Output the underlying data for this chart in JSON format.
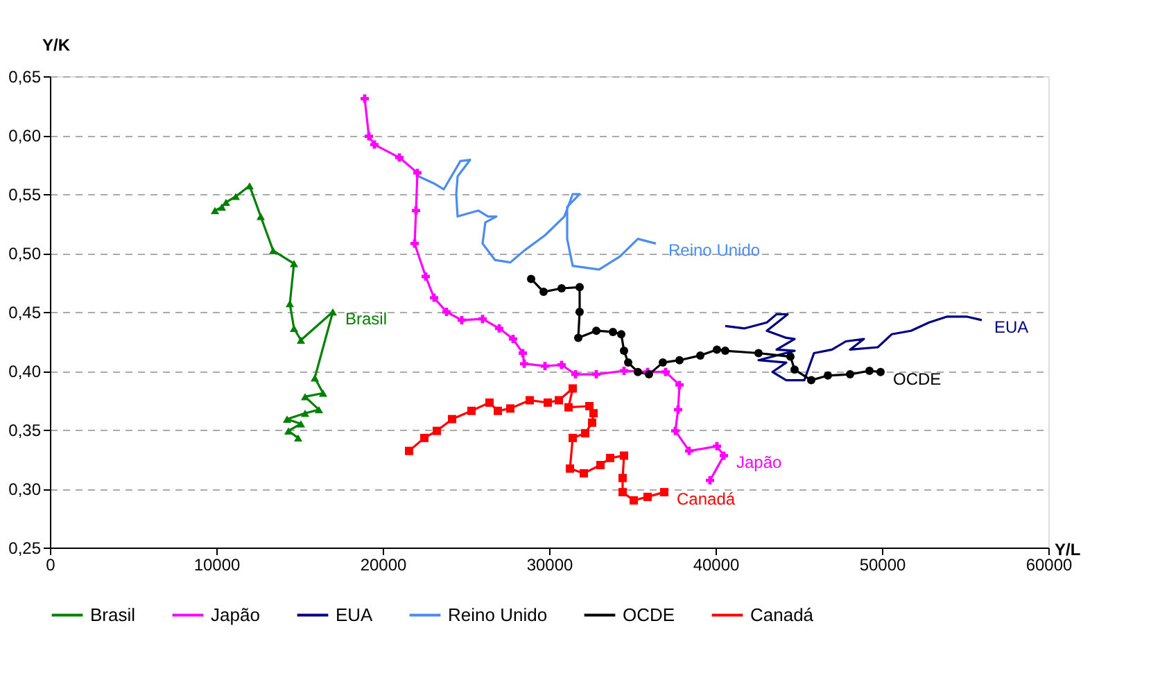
{
  "chart_data": {
    "type": "line",
    "xlabel": "Y/L",
    "ylabel": "Y/K",
    "xlim": [
      0,
      60000
    ],
    "xticks": [
      0,
      10000,
      20000,
      30000,
      40000,
      50000,
      60000
    ],
    "ylim": [
      0.25,
      0.65
    ],
    "yticks": [
      {
        "value": 0.25,
        "label": "0,25"
      },
      {
        "value": 0.3,
        "label": "0,30"
      },
      {
        "value": 0.35,
        "label": "0,35"
      },
      {
        "value": 0.4,
        "label": "0,40"
      },
      {
        "value": 0.45,
        "label": "0,45"
      },
      {
        "value": 0.5,
        "label": "0,50"
      },
      {
        "value": 0.55,
        "label": "0,55"
      },
      {
        "value": 0.6,
        "label": "0,60"
      },
      {
        "value": 0.65,
        "label": "0,65"
      }
    ],
    "grid": "y",
    "legend": "bottom",
    "line_style": "solid",
    "series": [
      {
        "name": "Brasil",
        "color": "#008000",
        "marker": "triangle",
        "x": [
          9917,
          10333,
          10583,
          11167,
          12000,
          12667,
          13417,
          14667,
          14417,
          14667,
          15083,
          17000,
          15917,
          16417,
          15333,
          16167,
          15333,
          14250,
          15083,
          14333,
          14917
        ],
        "values": [
          0.536,
          0.539,
          0.543,
          0.548,
          0.557,
          0.531,
          0.502,
          0.491,
          0.457,
          0.436,
          0.426,
          0.45,
          0.394,
          0.381,
          0.378,
          0.367,
          0.364,
          0.359,
          0.355,
          0.349,
          0.343
        ]
      },
      {
        "name": "Japão",
        "color": "#ff00ff",
        "marker": "cross",
        "x": [
          18917,
          19167,
          19500,
          21000,
          22083,
          22000,
          21917,
          22583,
          23083,
          23833,
          24750,
          26000,
          27000,
          27833,
          28417,
          28500,
          29750,
          30750,
          31583,
          32833,
          34500,
          35917,
          37000,
          37833,
          37750,
          37583,
          38417,
          40083,
          40500,
          39667
        ],
        "values": [
          0.631,
          0.599,
          0.592,
          0.581,
          0.568,
          0.536,
          0.508,
          0.48,
          0.462,
          0.45,
          0.443,
          0.444,
          0.436,
          0.427,
          0.415,
          0.406,
          0.404,
          0.405,
          0.397,
          0.397,
          0.4,
          0.399,
          0.399,
          0.388,
          0.367,
          0.349,
          0.332,
          0.336,
          0.328,
          0.307
        ]
      },
      {
        "name": "EUA",
        "color": "#000080",
        "marker": "none",
        "x": [
          40583,
          41750,
          43083,
          43667,
          44333,
          43083,
          44250,
          44750,
          43667,
          44750,
          42583,
          44250,
          43417,
          44250,
          45333,
          45917,
          47000,
          47833,
          48917,
          48083,
          49750,
          50583,
          51750,
          52833,
          53917,
          55083,
          56000
        ],
        "values": [
          0.438,
          0.436,
          0.441,
          0.448,
          0.448,
          0.434,
          0.428,
          0.427,
          0.418,
          0.417,
          0.409,
          0.407,
          0.399,
          0.392,
          0.392,
          0.415,
          0.418,
          0.425,
          0.427,
          0.418,
          0.42,
          0.431,
          0.434,
          0.441,
          0.446,
          0.446,
          0.443
        ]
      },
      {
        "name": "Reino Unido",
        "color": "#4a8cf0",
        "marker": "none",
        "x": [
          22167,
          23083,
          23667,
          24667,
          25250,
          24500,
          24417,
          24500,
          25750,
          26333,
          26833,
          26167,
          26000,
          26750,
          27667,
          28500,
          29750,
          30917,
          31417,
          31833,
          31083,
          31083,
          31417,
          33000,
          34250,
          35333,
          36417
        ],
        "values": [
          0.565,
          0.559,
          0.554,
          0.578,
          0.579,
          0.565,
          0.55,
          0.531,
          0.536,
          0.531,
          0.531,
          0.526,
          0.508,
          0.494,
          0.492,
          0.502,
          0.515,
          0.531,
          0.55,
          0.55,
          0.539,
          0.512,
          0.489,
          0.486,
          0.497,
          0.512,
          0.508
        ]
      },
      {
        "name": "OCDE",
        "color": "#000000",
        "marker": "circle",
        "x": [
          28917,
          29667,
          30750,
          31833,
          31833,
          31750,
          32833,
          33833,
          34333,
          34500,
          34750,
          35333,
          36000,
          36833,
          37833,
          39083,
          40083,
          40583,
          42583,
          44500,
          44750,
          45750,
          46750,
          48083,
          49250,
          49917
        ],
        "values": [
          0.478,
          0.467,
          0.47,
          0.471,
          0.45,
          0.428,
          0.434,
          0.433,
          0.431,
          0.417,
          0.407,
          0.399,
          0.397,
          0.407,
          0.409,
          0.413,
          0.418,
          0.417,
          0.415,
          0.412,
          0.401,
          0.392,
          0.396,
          0.397,
          0.4,
          0.399
        ]
      },
      {
        "name": "Canadá",
        "color": "#ff0000",
        "marker": "square",
        "x": [
          21583,
          22500,
          23250,
          24167,
          25333,
          26417,
          26917,
          27667,
          28833,
          29917,
          30583,
          31417,
          31167,
          32417,
          32667,
          32583,
          32167,
          31417,
          31250,
          32083,
          33083,
          33667,
          34500,
          34417,
          34417,
          35083,
          35917,
          36917
        ],
        "values": [
          0.332,
          0.343,
          0.349,
          0.359,
          0.366,
          0.373,
          0.366,
          0.368,
          0.375,
          0.373,
          0.375,
          0.385,
          0.369,
          0.37,
          0.364,
          0.356,
          0.347,
          0.343,
          0.317,
          0.313,
          0.32,
          0.326,
          0.328,
          0.309,
          0.297,
          0.29,
          0.293,
          0.297
        ]
      }
    ]
  }
}
